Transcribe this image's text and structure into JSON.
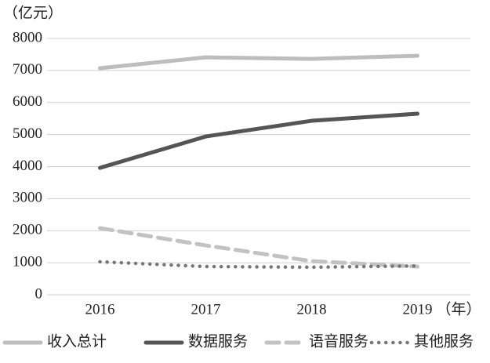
{
  "chart_data": {
    "type": "line",
    "y_label": "（亿元）",
    "x_label": "（年）",
    "categories": [
      "2016",
      "2017",
      "2018",
      "2019"
    ],
    "series": [
      {
        "name": "收入总计",
        "color": "#bdbdbd",
        "style": "solid",
        "values": [
          7070,
          7410,
          7360,
          7460
        ]
      },
      {
        "name": "数据服务",
        "color": "#555555",
        "style": "solid",
        "values": [
          3960,
          4940,
          5430,
          5650
        ]
      },
      {
        "name": "语音服务",
        "color": "#c2c2c2",
        "style": "dashed",
        "values": [
          2080,
          1540,
          1050,
          880
        ]
      },
      {
        "name": "其他服务",
        "color": "#777777",
        "style": "dotted",
        "values": [
          1030,
          880,
          860,
          900
        ]
      }
    ],
    "ylim": [
      0,
      8000
    ],
    "yticks": [
      0,
      1000,
      2000,
      3000,
      4000,
      5000,
      6000,
      7000,
      8000
    ],
    "grid": true,
    "legend": "bottom"
  }
}
